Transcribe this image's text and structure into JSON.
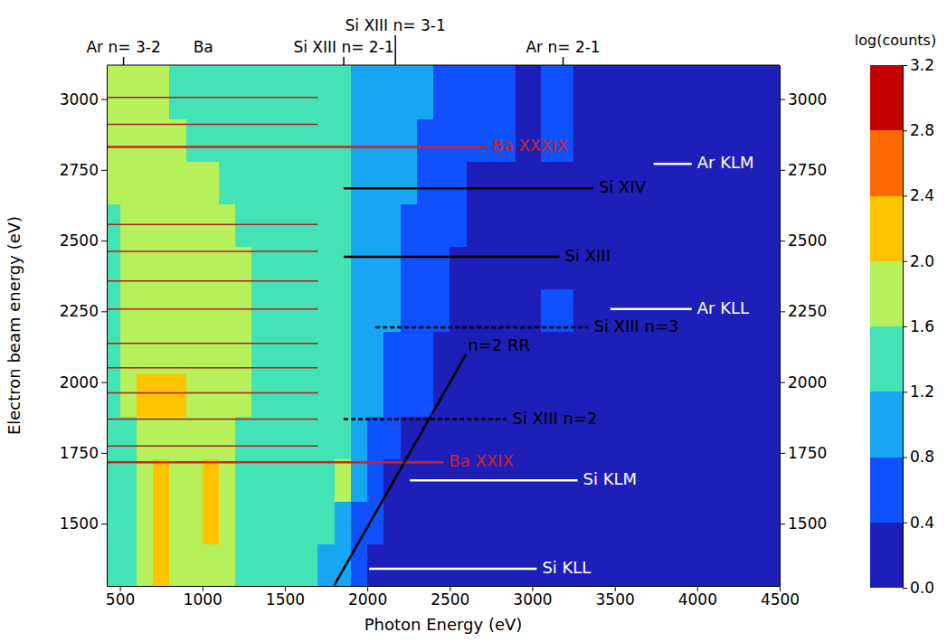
{
  "chart_data": {
    "type": "heatmap",
    "xlabel": "Photon Energy (eV)",
    "ylabel": "Electron beam energy (eV)",
    "xlim": [
      420,
      4500
    ],
    "ylim": [
      1280,
      3120
    ],
    "xticks": [
      500,
      1000,
      1500,
      2000,
      2500,
      3000,
      3500,
      4000,
      4500
    ],
    "yticks": [
      1500,
      1750,
      2000,
      2250,
      2500,
      2750,
      3000
    ],
    "x_edges": [
      420,
      500,
      600,
      700,
      800,
      900,
      1000,
      1100,
      1200,
      1300,
      1400,
      1500,
      1600,
      1700,
      1800,
      1900,
      2000,
      2100,
      2200,
      2300,
      2400,
      2500,
      2600,
      2900,
      3050,
      3250,
      3600,
      4000,
      4500
    ],
    "y_edges": [
      1280,
      1430,
      1580,
      1730,
      1880,
      2030,
      2180,
      2330,
      2480,
      2630,
      2780,
      2930,
      3120
    ],
    "z": [
      [
        1.3,
        1.4,
        1.7,
        2.0,
        1.7,
        1.8,
        1.9,
        1.6,
        1.4,
        1.4,
        1.3,
        1.3,
        1.2,
        1.1,
        0.9,
        0.6,
        0.3,
        0.2,
        0.1,
        0.1,
        0.1,
        0.1,
        0.1,
        0.1,
        0.1,
        0.0,
        0.0,
        0.0
      ],
      [
        1.3,
        1.5,
        1.8,
        2.0,
        1.7,
        1.8,
        2.0,
        1.6,
        1.5,
        1.4,
        1.4,
        1.3,
        1.3,
        1.2,
        1.0,
        0.7,
        0.4,
        0.2,
        0.1,
        0.1,
        0.1,
        0.1,
        0.1,
        0.1,
        0.1,
        0.0,
        0.0,
        0.0
      ],
      [
        1.4,
        1.5,
        1.8,
        2.0,
        1.7,
        1.8,
        2.0,
        1.7,
        1.5,
        1.5,
        1.4,
        1.4,
        1.3,
        1.3,
        1.6,
        0.8,
        0.5,
        0.3,
        0.2,
        0.1,
        0.1,
        0.1,
        0.1,
        0.1,
        0.1,
        0.0,
        0.0,
        0.0
      ],
      [
        1.4,
        1.5,
        1.8,
        1.9,
        1.7,
        1.8,
        1.9,
        1.7,
        1.5,
        1.5,
        1.4,
        1.4,
        1.4,
        1.3,
        1.4,
        0.9,
        0.6,
        0.4,
        0.2,
        0.2,
        0.1,
        0.1,
        0.1,
        0.1,
        0.1,
        0.0,
        0.0,
        0.0
      ],
      [
        1.5,
        1.7,
        2.2,
        2.0,
        2.1,
        1.9,
        1.8,
        1.7,
        1.6,
        1.5,
        1.5,
        1.4,
        1.4,
        1.3,
        1.4,
        1.0,
        0.8,
        0.6,
        0.5,
        0.4,
        0.2,
        0.1,
        0.1,
        0.1,
        0.1,
        0.0,
        0.0,
        0.0
      ],
      [
        1.5,
        1.7,
        1.9,
        1.9,
        1.9,
        1.8,
        1.7,
        1.7,
        1.6,
        1.5,
        1.5,
        1.4,
        1.4,
        1.3,
        1.3,
        1.0,
        0.9,
        0.7,
        0.6,
        0.4,
        0.3,
        0.2,
        0.1,
        0.1,
        0.1,
        0.0,
        0.0,
        0.0
      ],
      [
        1.5,
        1.6,
        1.7,
        1.8,
        1.8,
        1.7,
        1.7,
        1.6,
        1.6,
        1.5,
        1.5,
        1.4,
        1.4,
        1.3,
        1.3,
        1.0,
        0.9,
        0.8,
        0.7,
        0.5,
        0.4,
        0.2,
        0.1,
        0.1,
        0.6,
        0.1,
        0.0,
        0.0
      ],
      [
        1.5,
        1.6,
        1.7,
        1.7,
        1.7,
        1.7,
        1.6,
        1.6,
        1.6,
        1.5,
        1.5,
        1.4,
        1.4,
        1.3,
        1.3,
        1.0,
        0.9,
        0.8,
        0.7,
        0.6,
        0.5,
        0.3,
        0.2,
        0.1,
        0.2,
        0.1,
        0.0,
        0.0
      ],
      [
        1.5,
        1.6,
        1.6,
        1.7,
        1.6,
        1.6,
        1.6,
        1.6,
        1.5,
        1.5,
        1.4,
        1.4,
        1.3,
        1.3,
        1.2,
        1.0,
        0.9,
        0.8,
        0.7,
        0.7,
        0.6,
        0.4,
        0.2,
        0.1,
        0.2,
        0.1,
        0.0,
        0.0
      ],
      [
        1.6,
        1.6,
        1.6,
        1.6,
        1.6,
        1.6,
        1.6,
        1.5,
        1.5,
        1.4,
        1.4,
        1.4,
        1.3,
        1.3,
        1.2,
        1.0,
        0.9,
        0.9,
        0.8,
        0.7,
        0.6,
        0.5,
        0.3,
        0.1,
        0.3,
        0.1,
        0.1,
        0.0
      ],
      [
        1.7,
        1.6,
        1.6,
        1.6,
        1.6,
        1.5,
        1.5,
        1.5,
        1.5,
        1.4,
        1.4,
        1.3,
        1.3,
        1.2,
        1.2,
        1.0,
        0.9,
        0.9,
        0.8,
        0.7,
        0.7,
        0.6,
        0.4,
        0.2,
        0.5,
        0.1,
        0.1,
        0.0
      ],
      [
        1.8,
        1.6,
        1.6,
        1.6,
        1.5,
        1.5,
        1.5,
        1.5,
        1.4,
        1.4,
        1.4,
        1.3,
        1.3,
        1.2,
        1.2,
        1.0,
        0.9,
        0.9,
        0.8,
        0.8,
        0.7,
        0.6,
        0.4,
        0.2,
        0.6,
        0.1,
        0.1,
        0.0
      ]
    ],
    "colorbar": {
      "title": "log(counts)",
      "lim": [
        0,
        3.2
      ],
      "ticks": [
        {
          "value": 0,
          "label": "0.0"
        },
        {
          "value": 0.4,
          "label": "0.4"
        },
        {
          "value": 0.8,
          "label": "0.8"
        },
        {
          "value": 1.2,
          "label": "1.2"
        },
        {
          "value": 1.6,
          "label": "1.6"
        },
        {
          "value": 2.0,
          "label": "2.0"
        },
        {
          "value": 2.4,
          "label": "2.4"
        },
        {
          "value": 2.8,
          "label": "2.8"
        },
        {
          "value": 3.2,
          "label": "3.2"
        }
      ],
      "colors": [
        "#1e1eb9",
        "#0f50ff",
        "#17a6f2",
        "#44e3b6",
        "#b6f05a",
        "#ffc400",
        "#ff6a00",
        "#c30000"
      ]
    },
    "top_labels": [
      {
        "text": "Ar n= 3-2",
        "x": 522,
        "marker": "line"
      },
      {
        "text": "Ba",
        "x": 1005,
        "marker": "none"
      },
      {
        "text": "Si XIII n= 2-1",
        "x": 1857,
        "marker": "line"
      },
      {
        "text": "Si XIII n= 3-1",
        "x": 2170,
        "marker": "line"
      },
      {
        "text": "Ar n= 2-1",
        "x": 3187,
        "marker": "line"
      }
    ],
    "reference_lines": {
      "color": "#a82020",
      "x": [
        420,
        1700
      ],
      "y": [
        3006,
        2911,
        2557,
        2462,
        2357,
        2258,
        2137,
        2051,
        1962,
        1869,
        1774
      ]
    },
    "annotations": [
      {
        "text": "Ba XXXIX",
        "x": [
          420,
          2725
        ],
        "y": 2831,
        "color": "#d42020",
        "line_style": "solid"
      },
      {
        "text": "Ba XXIX",
        "x": [
          420,
          2462
        ],
        "y": 1717,
        "color": "#d42020",
        "line_style": "solid"
      },
      {
        "text": "Si XIV",
        "x": [
          1857,
          3370
        ],
        "y": 2685,
        "color": "#000000",
        "line_style": "solid"
      },
      {
        "text": "Si XIII",
        "x": [
          1857,
          3165
        ],
        "y": 2443,
        "color": "#000000",
        "line_style": "solid"
      },
      {
        "text": "Si XIII n=3",
        "x": [
          2050,
          3340
        ],
        "y": 2194,
        "color": "#000000",
        "line_style": "dashed"
      },
      {
        "text": "Si XIII n=2",
        "x": [
          1857,
          2846
        ],
        "y": 1869,
        "color": "#000000",
        "line_style": "dashed"
      },
      {
        "text": "n=2 RR",
        "x": [
          1800,
          2599
        ],
        "y": [
          1283,
          2099
        ],
        "color": "#000000",
        "line_style": "solid"
      },
      {
        "text": "Ar KLM",
        "x": [
          3736,
          3967
        ],
        "y": 2771,
        "color": "#ffffff",
        "line_style": "solid"
      },
      {
        "text": "Ar KLL",
        "x": [
          3474,
          3967
        ],
        "y": 2258,
        "color": "#ffffff",
        "line_style": "solid"
      },
      {
        "text": "Si KLM",
        "x": [
          2258,
          3275
        ],
        "y": 1653,
        "color": "#ffffff",
        "line_style": "solid"
      },
      {
        "text": "Si KLL",
        "x": [
          2011,
          3027
        ],
        "y": 1341,
        "color": "#ffffff",
        "line_style": "solid"
      }
    ]
  }
}
